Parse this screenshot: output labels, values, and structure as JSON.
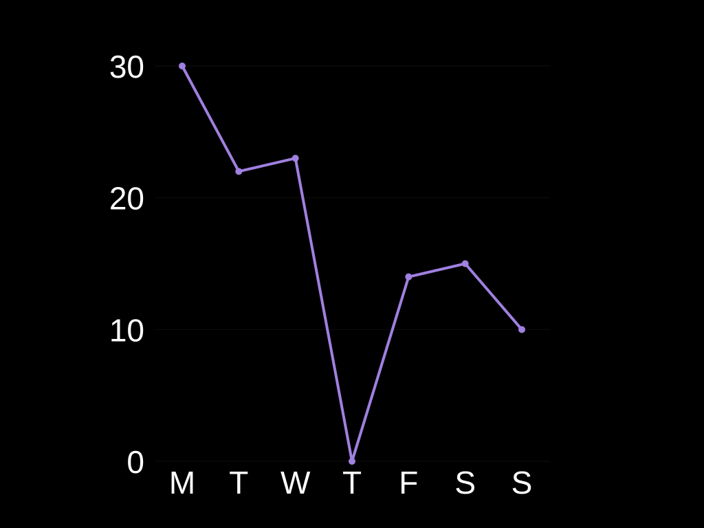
{
  "chart_data": {
    "type": "line",
    "categories": [
      "M",
      "T",
      "W",
      "T",
      "F",
      "S",
      "S"
    ],
    "series": [
      {
        "values": [
          30,
          22,
          23,
          0,
          14,
          15,
          10
        ]
      }
    ],
    "ylim": [
      0,
      30
    ],
    "yticks": [
      0,
      10,
      20,
      30
    ],
    "grid": true,
    "colors": {
      "background": "#000000",
      "line": "#a080e0",
      "text": "#ffffff",
      "grid": "#0f0f0f"
    }
  }
}
